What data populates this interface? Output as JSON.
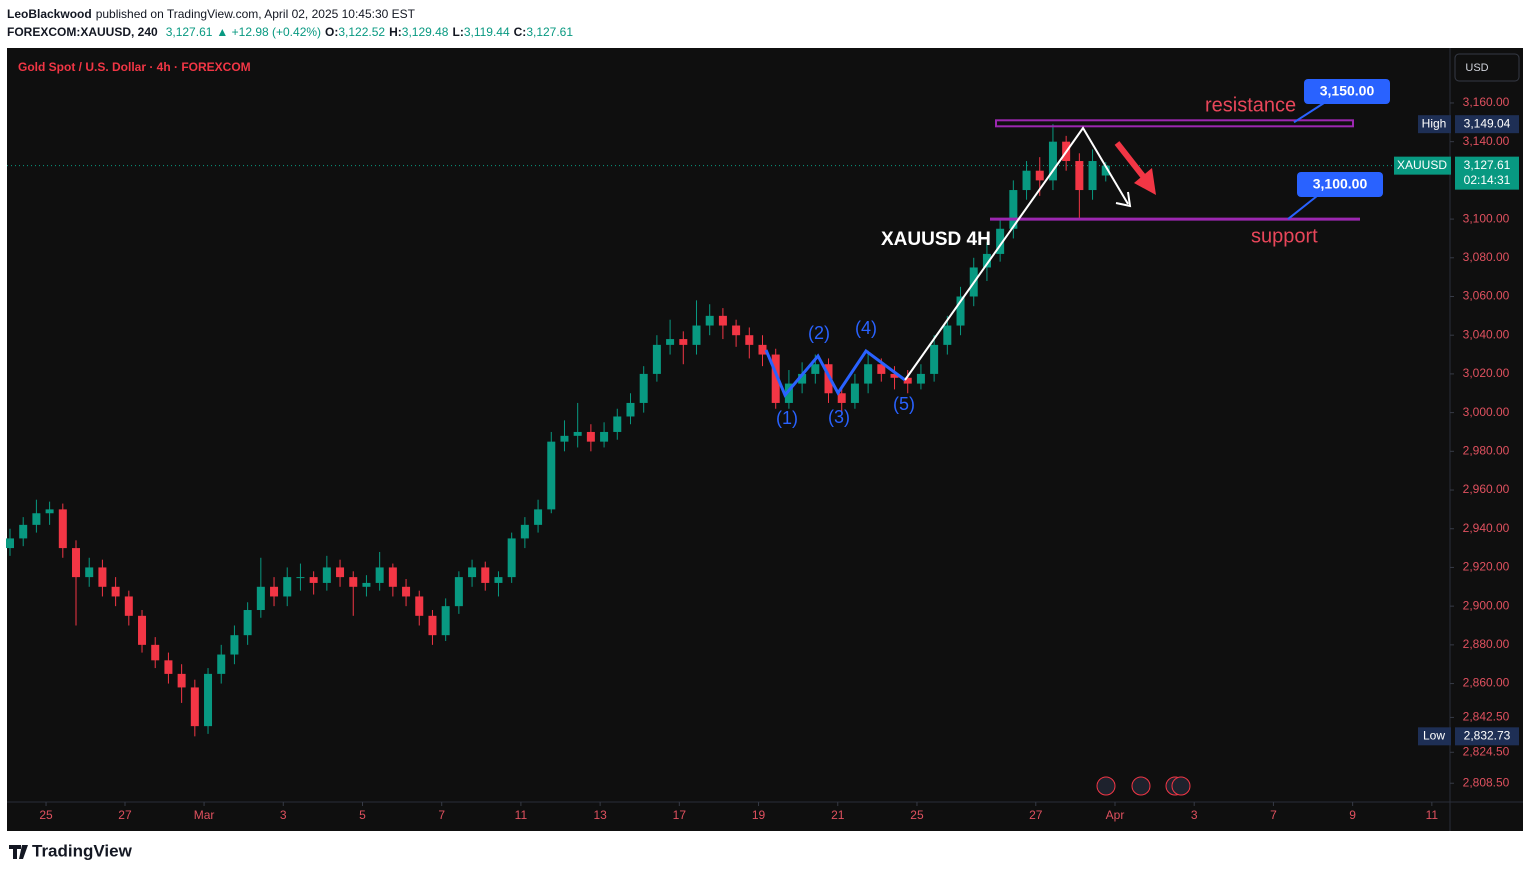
{
  "header": {
    "author": "LeoBlackwood",
    "published": "published on TradingView.com, April 02, 2025 10:45:30 EST",
    "symbol": "FOREXCOM:XAUUSD, 240",
    "last": "3,127.61",
    "change": "▲ +12.98 (+0.42%)",
    "ohlc_labels": [
      "O:",
      "H:",
      "L:",
      "C:"
    ],
    "ohlc_values": [
      "3,122.52",
      "3,129.48",
      "3,119.44",
      "3,127.61"
    ]
  },
  "chart_data": {
    "type": "candlestick",
    "title": "Gold Spot / U.S. Dollar · 4h · FOREXCOM",
    "currency": "USD",
    "up_color": "#089981",
    "down_color": "#f23645",
    "candles": [
      [
        2930,
        2940,
        2926,
        2935
      ],
      [
        2935,
        2946,
        2931,
        2942
      ],
      [
        2942,
        2955,
        2938,
        2948
      ],
      [
        2948,
        2954,
        2942,
        2950
      ],
      [
        2950,
        2953,
        2925,
        2930
      ],
      [
        2930,
        2934,
        2890,
        2915
      ],
      [
        2915,
        2925,
        2910,
        2920
      ],
      [
        2920,
        2924,
        2905,
        2910
      ],
      [
        2910,
        2915,
        2900,
        2905
      ],
      [
        2905,
        2908,
        2890,
        2895
      ],
      [
        2895,
        2898,
        2876,
        2880
      ],
      [
        2880,
        2884,
        2868,
        2872
      ],
      [
        2872,
        2876,
        2860,
        2865
      ],
      [
        2865,
        2870,
        2850,
        2858
      ],
      [
        2858,
        2862,
        2832.73,
        2838
      ],
      [
        2838,
        2868,
        2834,
        2865
      ],
      [
        2865,
        2880,
        2860,
        2875
      ],
      [
        2875,
        2890,
        2870,
        2885
      ],
      [
        2885,
        2902,
        2880,
        2898
      ],
      [
        2898,
        2925,
        2894,
        2910
      ],
      [
        2910,
        2915,
        2900,
        2905
      ],
      [
        2905,
        2920,
        2900,
        2915
      ],
      [
        2915,
        2922,
        2908,
        2915
      ],
      [
        2915,
        2918,
        2906,
        2912
      ],
      [
        2912,
        2926,
        2908,
        2920
      ],
      [
        2920,
        2924,
        2910,
        2915
      ],
      [
        2915,
        2918,
        2895,
        2910
      ],
      [
        2910,
        2916,
        2905,
        2912
      ],
      [
        2912,
        2928,
        2908,
        2920
      ],
      [
        2920,
        2922,
        2905,
        2910
      ],
      [
        2910,
        2914,
        2900,
        2905
      ],
      [
        2905,
        2908,
        2890,
        2895
      ],
      [
        2895,
        2898,
        2880,
        2885
      ],
      [
        2885,
        2904,
        2882,
        2900
      ],
      [
        2900,
        2918,
        2896,
        2915
      ],
      [
        2915,
        2924,
        2910,
        2920
      ],
      [
        2920,
        2923,
        2908,
        2912
      ],
      [
        2912,
        2918,
        2905,
        2915
      ],
      [
        2915,
        2938,
        2912,
        2935
      ],
      [
        2935,
        2946,
        2930,
        2942
      ],
      [
        2942,
        2955,
        2938,
        2950
      ],
      [
        2950,
        2990,
        2948,
        2985
      ],
      [
        2985,
        2996,
        2980,
        2988
      ],
      [
        2988,
        3005,
        2982,
        2990
      ],
      [
        2990,
        2994,
        2980,
        2985
      ],
      [
        2985,
        2995,
        2982,
        2990
      ],
      [
        2990,
        3002,
        2986,
        2998
      ],
      [
        2998,
        3010,
        2994,
        3005
      ],
      [
        3005,
        3024,
        3000,
        3020
      ],
      [
        3020,
        3040,
        3016,
        3035
      ],
      [
        3035,
        3048,
        3030,
        3038
      ],
      [
        3038,
        3042,
        3025,
        3035
      ],
      [
        3035,
        3058,
        3030,
        3045
      ],
      [
        3045,
        3056,
        3040,
        3050
      ],
      [
        3050,
        3054,
        3038,
        3045
      ],
      [
        3045,
        3048,
        3034,
        3040
      ],
      [
        3040,
        3044,
        3028,
        3035
      ],
      [
        3035,
        3040,
        3024,
        3030
      ],
      [
        3030,
        3033,
        3002,
        3005
      ],
      [
        3005,
        3022,
        3002,
        3015
      ],
      [
        3015,
        3026,
        3010,
        3020
      ],
      [
        3020,
        3030,
        3015,
        3025
      ],
      [
        3025,
        3028,
        3005,
        3010
      ],
      [
        3010,
        3014,
        3000,
        3005
      ],
      [
        3005,
        3020,
        3002,
        3015
      ],
      [
        3015,
        3032,
        3010,
        3025
      ],
      [
        3025,
        3028,
        3016,
        3020
      ],
      [
        3020,
        3024,
        3012,
        3018
      ],
      [
        3018,
        3022,
        3010,
        3015
      ],
      [
        3015,
        3025,
        3012,
        3020
      ],
      [
        3020,
        3040,
        3016,
        3035
      ],
      [
        3035,
        3050,
        3030,
        3045
      ],
      [
        3045,
        3065,
        3040,
        3060
      ],
      [
        3060,
        3080,
        3055,
        3075
      ],
      [
        3075,
        3088,
        3068,
        3082
      ],
      [
        3082,
        3100,
        3078,
        3095
      ],
      [
        3095,
        3120,
        3090,
        3115
      ],
      [
        3115,
        3130,
        3110,
        3125
      ],
      [
        3125,
        3132,
        3112,
        3120
      ],
      [
        3120,
        3149.04,
        3115,
        3140
      ],
      [
        3140,
        3143,
        3125,
        3130
      ],
      [
        3130,
        3134,
        3100,
        3115
      ],
      [
        3115,
        3136,
        3110,
        3130
      ],
      [
        3122.52,
        3129.48,
        3119.44,
        3127.61
      ]
    ],
    "xlim": [
      0,
      109
    ],
    "xticks": [
      {
        "value": 2.73,
        "label": "25"
      },
      {
        "value": 8.71,
        "label": "27"
      },
      {
        "value": 14.7,
        "label": "Mar"
      },
      {
        "value": 20.7,
        "label": "3"
      },
      {
        "value": 26.7,
        "label": "5"
      },
      {
        "value": 32.7,
        "label": "7"
      },
      {
        "value": 38.7,
        "label": "11"
      },
      {
        "value": 44.7,
        "label": "13"
      },
      {
        "value": 50.7,
        "label": "17"
      },
      {
        "value": 56.7,
        "label": "19"
      },
      {
        "value": 62.7,
        "label": "21"
      },
      {
        "value": 68.7,
        "label": "25"
      },
      {
        "value": 77.7,
        "label": "27"
      },
      {
        "value": 83.7,
        "label": "Apr"
      },
      {
        "value": 89.7,
        "label": "3"
      },
      {
        "value": 95.7,
        "label": "7"
      },
      {
        "value": 101.7,
        "label": "9"
      },
      {
        "value": 107.7,
        "label": "11"
      }
    ],
    "ylim": [
      2798.8,
      3188.4
    ],
    "yticks": [
      {
        "value": 3160,
        "label": "3,160.00"
      },
      {
        "value": 3140,
        "label": "3,140.00"
      },
      {
        "value": 3100,
        "label": "3,100.00"
      },
      {
        "value": 3080,
        "label": "3,080.00"
      },
      {
        "value": 3060,
        "label": "3,060.00"
      },
      {
        "value": 3040,
        "label": "3,040.00"
      },
      {
        "value": 3020,
        "label": "3,020.00"
      },
      {
        "value": 3000,
        "label": "3,000.00"
      },
      {
        "value": 2980,
        "label": "2,980.00"
      },
      {
        "value": 2960,
        "label": "2,960.00"
      },
      {
        "value": 2940,
        "label": "2,940.00"
      },
      {
        "value": 2920,
        "label": "2,920.00"
      },
      {
        "value": 2900,
        "label": "2,900.00"
      },
      {
        "value": 2880,
        "label": "2,880.00"
      },
      {
        "value": 2860,
        "label": "2,860.00"
      },
      {
        "value": 2842.5,
        "label": "2,842.50"
      },
      {
        "value": 2824.5,
        "label": "2,824.50"
      },
      {
        "value": 2808.5,
        "label": "2,808.50"
      }
    ],
    "grid": false,
    "high": {
      "name": "High",
      "value": 3149.04,
      "label": "3,149.04"
    },
    "low": {
      "name": "Low",
      "value": 2832.73,
      "label": "2,832.73"
    },
    "last_price": {
      "name": "XAUUSD",
      "value": 3127.61,
      "label": "3,127.61",
      "countdown": "02:14:31"
    },
    "annotations": {
      "resistance": {
        "text": "resistance",
        "value": 3150,
        "label": "3,150.00"
      },
      "support": {
        "text": "support",
        "value": 3100,
        "label": "3,100.00"
      },
      "caption": "XAUUSD 4H",
      "waves": [
        "(1)",
        "(2)",
        "(3)",
        "(4)",
        "(5)"
      ]
    }
  },
  "footer": {
    "brand": "TradingView"
  }
}
